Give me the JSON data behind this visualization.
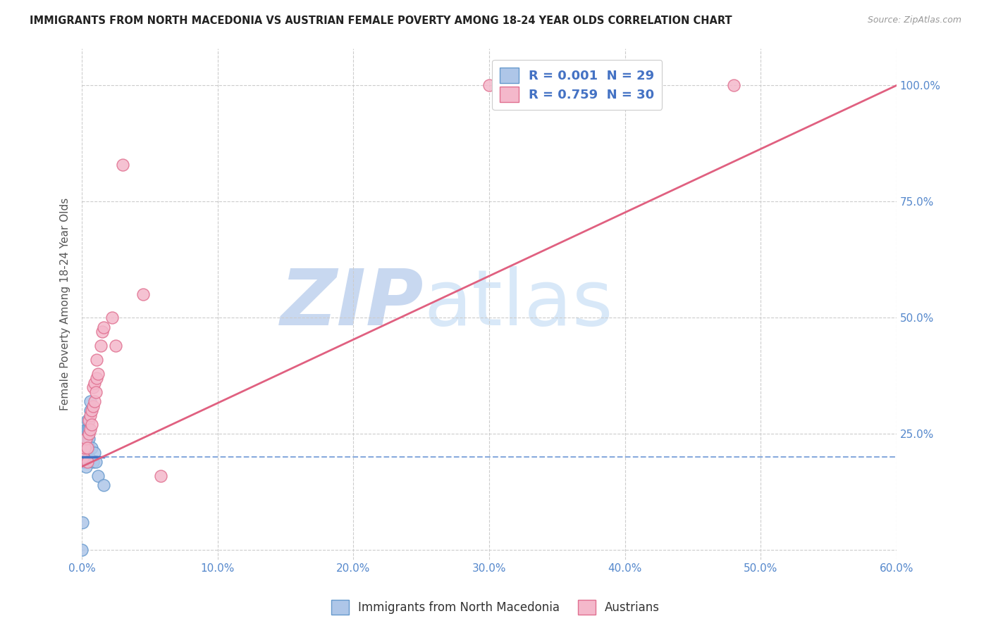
{
  "title": "IMMIGRANTS FROM NORTH MACEDONIA VS AUSTRIAN FEMALE POVERTY AMONG 18-24 YEAR OLDS CORRELATION CHART",
  "source": "Source: ZipAtlas.com",
  "ylabel": "Female Poverty Among 18-24 Year Olds",
  "xlim": [
    0.0,
    0.6
  ],
  "ylim": [
    -0.02,
    1.08
  ],
  "xticks": [
    0.0,
    0.1,
    0.2,
    0.3,
    0.4,
    0.5,
    0.6
  ],
  "xticklabels": [
    "0.0%",
    "10.0%",
    "20.0%",
    "30.0%",
    "40.0%",
    "50.0%",
    "60.0%"
  ],
  "yticks": [
    0.0,
    0.25,
    0.5,
    0.75,
    1.0
  ],
  "yticklabels_right": [
    "",
    "25.0%",
    "50.0%",
    "75.0%",
    "100.0%"
  ],
  "legend_r1": "R = 0.001  N = 29",
  "legend_r2": "R = 0.759  N = 30",
  "blue_color": "#aec6e8",
  "pink_color": "#f4b8cb",
  "blue_edge": "#6699cc",
  "pink_edge": "#e07090",
  "trend_blue_solid_color": "#4472c4",
  "trend_blue_dash_color": "#88aadd",
  "trend_pink_color": "#e06080",
  "watermark_zip": "ZIP",
  "watermark_atlas": "atlas",
  "watermark_color": "#c8d8f0",
  "blue_x": [
    0.0005,
    0.001,
    0.001,
    0.001,
    0.002,
    0.002,
    0.002,
    0.003,
    0.003,
    0.003,
    0.003,
    0.003,
    0.004,
    0.004,
    0.004,
    0.004,
    0.005,
    0.005,
    0.005,
    0.005,
    0.006,
    0.006,
    0.007,
    0.008,
    0.009,
    0.01,
    0.012,
    0.016,
    0.0
  ],
  "blue_y": [
    0.06,
    0.19,
    0.21,
    0.23,
    0.19,
    0.21,
    0.23,
    0.18,
    0.2,
    0.22,
    0.24,
    0.26,
    0.22,
    0.24,
    0.26,
    0.28,
    0.2,
    0.22,
    0.24,
    0.26,
    0.3,
    0.32,
    0.22,
    0.19,
    0.21,
    0.19,
    0.16,
    0.14,
    0.0
  ],
  "pink_x": [
    0.001,
    0.002,
    0.003,
    0.004,
    0.004,
    0.005,
    0.005,
    0.006,
    0.006,
    0.007,
    0.007,
    0.008,
    0.008,
    0.009,
    0.009,
    0.01,
    0.011,
    0.011,
    0.012,
    0.014,
    0.015,
    0.016,
    0.022,
    0.025,
    0.03,
    0.045,
    0.058,
    0.3,
    0.42,
    0.48
  ],
  "pink_y": [
    0.2,
    0.22,
    0.24,
    0.19,
    0.22,
    0.25,
    0.28,
    0.26,
    0.29,
    0.27,
    0.3,
    0.31,
    0.35,
    0.32,
    0.36,
    0.34,
    0.37,
    0.41,
    0.38,
    0.44,
    0.47,
    0.48,
    0.5,
    0.44,
    0.83,
    0.55,
    0.16,
    1.0,
    1.0,
    1.0
  ],
  "blue_trend_x": [
    0.0,
    0.016,
    0.6
  ],
  "blue_trend_y": [
    0.2,
    0.2,
    0.2
  ],
  "blue_trend_solid_end": 0.016,
  "pink_trend_x": [
    0.0,
    0.6
  ],
  "pink_trend_y": [
    0.18,
    1.0
  ]
}
